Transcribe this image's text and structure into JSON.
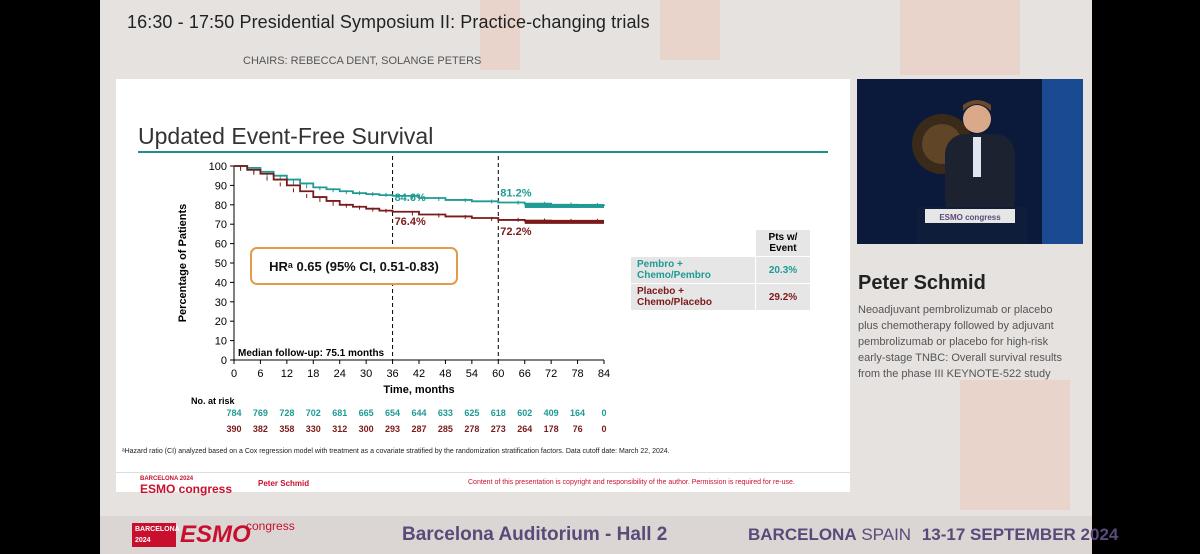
{
  "session": {
    "title": "16:30 - 17:50  Presidential Symposium II: Practice-changing trials",
    "chairs": "CHAIRS: REBECCA DENT, SOLANGE PETERS"
  },
  "slide": {
    "title": "Updated Event-Free Survival",
    "hr_label": "HRᵃ 0.65 (95% CI, 0.51-0.83)",
    "median_followup": "Median follow-up: 75.1 months",
    "annotations": {
      "pembro_36": "84.6%",
      "placebo_36": "76.4%",
      "pembro_60": "81.2%",
      "placebo_60": "72.2%"
    },
    "table": {
      "header": "Pts w/ Event",
      "rows": [
        {
          "arm": "Pembro + Chemo/Pembro",
          "value": "20.3%"
        },
        {
          "arm": "Placebo + Chemo/Placebo",
          "value": "29.2%"
        }
      ]
    },
    "risk_title": "No. at risk",
    "footnote": "ᵃHazard ratio (CI) analyzed based on a Cox regression model with treatment as a covariate stratified by the randomization stratification factors. Data cutoff date: March 22, 2024.",
    "footer_presenter": "Peter Schmid",
    "footer_copyright": "Content of this presentation is copyright and responsibility of the author. Permission is required for re-use.",
    "logo_top": "BARCELONA 2024",
    "logo_word": "ESMO congress"
  },
  "chart_data": {
    "type": "line",
    "title": "",
    "xlabel": "Time, months",
    "ylabel": "Percentage of Patients",
    "xlim": [
      0,
      84
    ],
    "ylim": [
      0,
      100
    ],
    "xticks": [
      "0",
      "6",
      "12",
      "18",
      "24",
      "30",
      "36",
      "42",
      "48",
      "54",
      "60",
      "66",
      "72",
      "78",
      "84"
    ],
    "yticks": [
      "0",
      "10",
      "20",
      "30",
      "40",
      "50",
      "60",
      "70",
      "80",
      "90",
      "100"
    ],
    "reference_lines_x": [
      36,
      60
    ],
    "grid": false,
    "series": [
      {
        "name": "Pembro + Chemo/Pembro",
        "color": "#1f9a94",
        "x": [
          0,
          3,
          6,
          9,
          12,
          15,
          18,
          21,
          24,
          27,
          30,
          33,
          36,
          42,
          48,
          54,
          60,
          66,
          72,
          78,
          84
        ],
        "y": [
          100,
          99,
          97,
          95,
          93,
          91,
          89,
          88,
          87,
          86,
          85.5,
          85,
          84.6,
          83.5,
          82.5,
          81.8,
          81.2,
          80.6,
          80,
          79.6,
          79.4
        ],
        "at_risk": [
          "784",
          "769",
          "728",
          "702",
          "681",
          "665",
          "654",
          "644",
          "633",
          "625",
          "618",
          "602",
          "409",
          "164",
          "0"
        ]
      },
      {
        "name": "Placebo + Chemo/Placebo",
        "color": "#7a1a1a",
        "x": [
          0,
          3,
          6,
          9,
          12,
          15,
          18,
          21,
          24,
          27,
          30,
          33,
          36,
          42,
          48,
          54,
          60,
          66,
          72,
          78,
          84
        ],
        "y": [
          100,
          98,
          96,
          93,
          90,
          87,
          84,
          82,
          80,
          79,
          78,
          77,
          76.4,
          75,
          74,
          73.2,
          72.2,
          71.8,
          71.4,
          71.2,
          71.2
        ],
        "at_risk": [
          "390",
          "382",
          "358",
          "330",
          "312",
          "300",
          "293",
          "287",
          "285",
          "278",
          "273",
          "264",
          "178",
          "76",
          "0"
        ]
      }
    ]
  },
  "speaker": {
    "name": "Peter Schmid",
    "talk": "Neoadjuvant pembrolizumab or placebo plus chemotherapy followed by adjuvant pembrolizumab or placebo for high-risk early-stage TNBC: Overall survival results from the phase III KEYNOTE-522 study",
    "lectern_text": "ESMO congress"
  },
  "bottom_bar": {
    "logo_top": "BARCELONA 2024",
    "logo_word": "ESMO",
    "logo_congress": "congress",
    "venue": "Barcelona Auditorium - Hall 2",
    "city_bold": "BARCELONA",
    "city_rest": " SPAIN",
    "dates": "13-17 SEPTEMBER 2024"
  },
  "colors": {
    "pembro": "#1f9a94",
    "placebo": "#7a1a1a",
    "rule": "#1f8f8c",
    "hr_border": "#e39a4a",
    "brand_red": "#c8102e",
    "venue_purple": "#5a4a7a"
  }
}
